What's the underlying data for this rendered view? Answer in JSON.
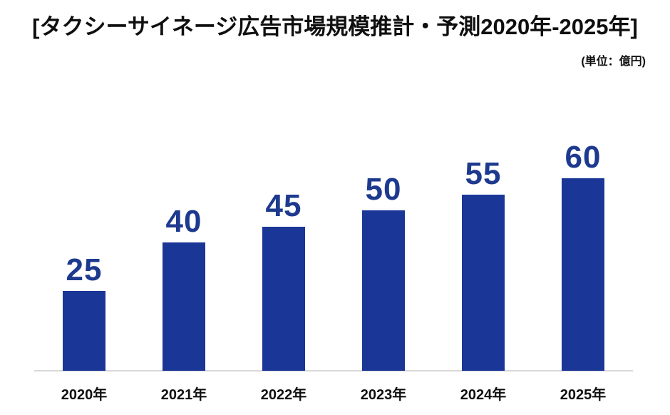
{
  "header": {
    "title": "[タクシーサイネージ広告市場規模推計・予測2020年-2025年]",
    "unit_label": "(単位：億円)"
  },
  "chart_data": {
    "type": "bar",
    "title": "タクシーサイネージ広告市場規模推計・予測2020年-2025年",
    "unit": "億円",
    "categories": [
      "2020年",
      "2021年",
      "2022年",
      "2023年",
      "2024年",
      "2025年"
    ],
    "values": [
      25,
      40,
      45,
      50,
      55,
      60
    ],
    "xlabel": "",
    "ylabel": "",
    "ylim": [
      0,
      60
    ],
    "grid": false,
    "legend": false,
    "value_labels_shown": true,
    "bar_color": "#1a3696",
    "value_label_color": "#1e3a8f",
    "axis_line_color": "#d9d9d9",
    "text_color": "#0f0f0f"
  }
}
